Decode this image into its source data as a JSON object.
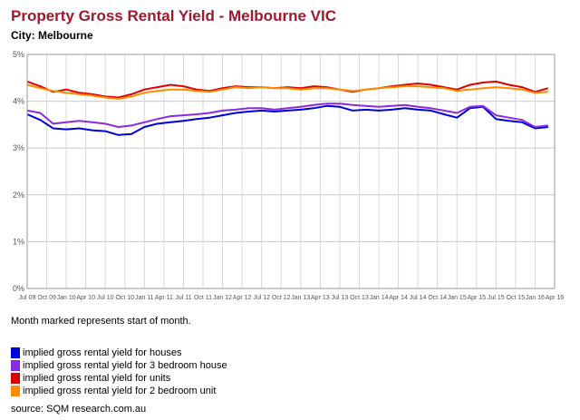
{
  "chart_data": {
    "type": "line",
    "title": "Property Gross Rental Yield - Melbourne VIC",
    "subtitle": "City: Melbourne",
    "ylim": [
      0,
      5
    ],
    "yticks": [
      0,
      1,
      2,
      3,
      4,
      5
    ],
    "ytick_labels": [
      "0%",
      "1%",
      "2%",
      "3%",
      "4%",
      "5%"
    ],
    "x_start": "2009-07",
    "x_end": "2016-04",
    "xticks": [
      "2009-07",
      "2009-10",
      "2010-01",
      "2010-04",
      "2010-07",
      "2010-10",
      "2011-01",
      "2011-04",
      "2011-07",
      "2011-10",
      "2012-01",
      "2012-04",
      "2012-07",
      "2012-10",
      "2013-01",
      "2013-04",
      "2013-07",
      "2013-10",
      "2014-01",
      "2014-04",
      "2014-07",
      "2014-10",
      "2015-01",
      "2015-04",
      "2015-07",
      "2015-10",
      "2016-01",
      "2016-04"
    ],
    "xtick_labels": [
      "Jul 09",
      "Oct 09",
      "Jan 10",
      "Apr 10",
      "Jul 10",
      "Oct 10",
      "Jan 11",
      "Apr 11",
      "Jul 11",
      "Oct 11",
      "Jan 12",
      "Apr 12",
      "Jul 12",
      "Oct 12",
      "Jan 13",
      "Apr 13",
      "Jul 13",
      "Oct 13",
      "Jan 14",
      "Apr 14",
      "Jul 14",
      "Oct 14",
      "Jan 15",
      "Apr 15",
      "Jul 15",
      "Oct 15",
      "Jan 16",
      "Apr 16"
    ],
    "grid": true,
    "legend_position": "bottom-left",
    "x": [
      "2009-07",
      "2009-09",
      "2009-11",
      "2010-01",
      "2010-03",
      "2010-05",
      "2010-07",
      "2010-09",
      "2010-11",
      "2011-01",
      "2011-03",
      "2011-05",
      "2011-07",
      "2011-09",
      "2011-11",
      "2012-01",
      "2012-03",
      "2012-05",
      "2012-07",
      "2012-09",
      "2012-11",
      "2013-01",
      "2013-03",
      "2013-05",
      "2013-07",
      "2013-09",
      "2013-11",
      "2014-01",
      "2014-03",
      "2014-05",
      "2014-07",
      "2014-09",
      "2014-11",
      "2015-01",
      "2015-03",
      "2015-05",
      "2015-07",
      "2015-09",
      "2015-11",
      "2016-01",
      "2016-03"
    ],
    "series": [
      {
        "name": "implied gross rental yield for houses",
        "color": "#0000dd",
        "values": [
          3.72,
          3.6,
          3.42,
          3.4,
          3.42,
          3.38,
          3.36,
          3.28,
          3.3,
          3.45,
          3.52,
          3.55,
          3.58,
          3.62,
          3.65,
          3.7,
          3.75,
          3.78,
          3.8,
          3.78,
          3.8,
          3.82,
          3.85,
          3.9,
          3.88,
          3.8,
          3.82,
          3.8,
          3.82,
          3.85,
          3.82,
          3.8,
          3.72,
          3.65,
          3.85,
          3.88,
          3.62,
          3.58,
          3.55,
          3.42,
          3.45
        ]
      },
      {
        "name": "implied gross rental yield for 3 bedroom house",
        "color": "#8a2be2",
        "values": [
          3.8,
          3.75,
          3.52,
          3.55,
          3.58,
          3.55,
          3.52,
          3.45,
          3.48,
          3.55,
          3.62,
          3.68,
          3.7,
          3.72,
          3.75,
          3.8,
          3.82,
          3.85,
          3.85,
          3.82,
          3.85,
          3.88,
          3.92,
          3.95,
          3.95,
          3.92,
          3.9,
          3.88,
          3.9,
          3.92,
          3.88,
          3.85,
          3.8,
          3.75,
          3.88,
          3.9,
          3.7,
          3.65,
          3.6,
          3.45,
          3.48
        ]
      },
      {
        "name": "implied gross rental yield for units",
        "color": "#e00000",
        "values": [
          4.42,
          4.32,
          4.2,
          4.25,
          4.18,
          4.15,
          4.1,
          4.08,
          4.15,
          4.25,
          4.3,
          4.35,
          4.32,
          4.25,
          4.22,
          4.28,
          4.32,
          4.3,
          4.3,
          4.28,
          4.3,
          4.28,
          4.32,
          4.3,
          4.25,
          4.2,
          4.25,
          4.28,
          4.32,
          4.35,
          4.38,
          4.35,
          4.3,
          4.25,
          4.35,
          4.4,
          4.42,
          4.35,
          4.3,
          4.2,
          4.28
        ]
      },
      {
        "name": "implied gross rental yield for 2 bedroom unit",
        "color": "#ff8c00",
        "values": [
          4.35,
          4.28,
          4.22,
          4.18,
          4.15,
          4.12,
          4.08,
          4.05,
          4.1,
          4.18,
          4.22,
          4.25,
          4.25,
          4.22,
          4.2,
          4.25,
          4.3,
          4.28,
          4.3,
          4.28,
          4.28,
          4.25,
          4.28,
          4.28,
          4.25,
          4.22,
          4.25,
          4.28,
          4.3,
          4.32,
          4.32,
          4.3,
          4.28,
          4.22,
          4.25,
          4.28,
          4.3,
          4.28,
          4.25,
          4.18,
          4.2
        ]
      }
    ]
  },
  "note": "Month marked represents start of month.",
  "source": "source: SQM research.com.au"
}
